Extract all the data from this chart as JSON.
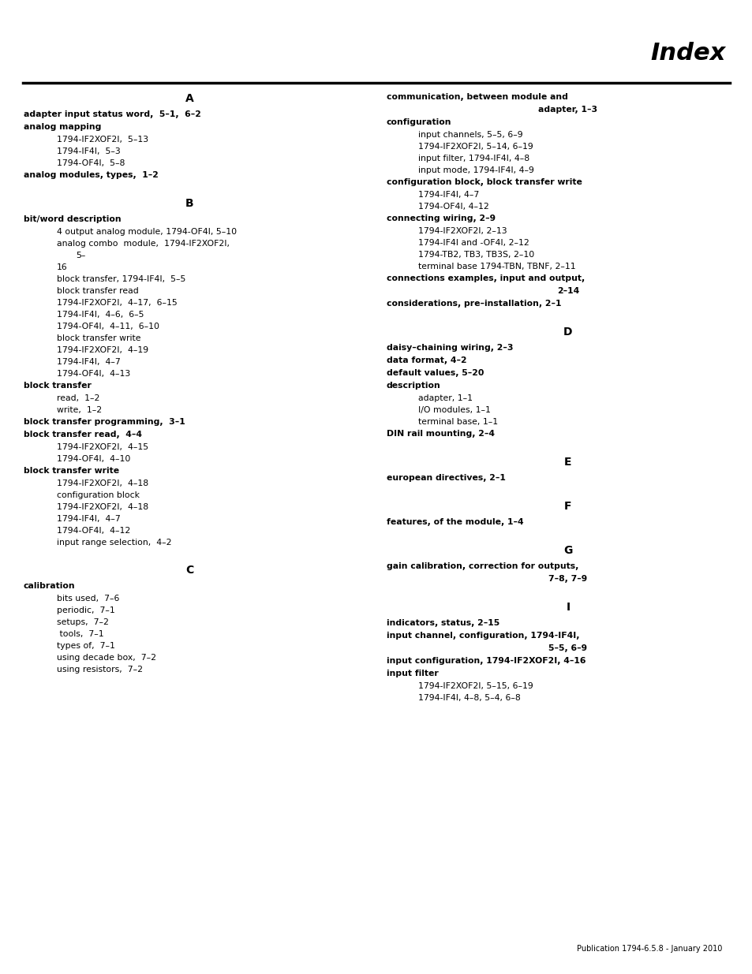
{
  "title": "Index",
  "bg_color": "#ffffff",
  "text_color": "#000000",
  "header_line_color": "#000000",
  "footer_text": "Publication 1794-6.5.8 - January 2010",
  "left_column": [
    {
      "type": "letter_header",
      "text": "A"
    },
    {
      "type": "bold_entry",
      "text": "adapter input status word,  5–1,  6–2"
    },
    {
      "type": "bold_entry",
      "text": "analog mapping"
    },
    {
      "type": "sub_entry",
      "text": "1794-IF2XOF2I,  5–13"
    },
    {
      "type": "sub_entry",
      "text": "1794-IF4I,  5–3"
    },
    {
      "type": "sub_entry",
      "text": "1794-OF4I,  5–8"
    },
    {
      "type": "bold_entry",
      "text": "analog modules, types,  1–2"
    },
    {
      "type": "spacer"
    },
    {
      "type": "letter_header",
      "text": "B"
    },
    {
      "type": "bold_entry",
      "text": "bit/word description"
    },
    {
      "type": "sub_entry",
      "text": "4 output analog module, 1794-OF4I, 5–10"
    },
    {
      "type": "sub_entry2",
      "text": "analog combo  module,  1794-IF2XOF2I,"
    },
    {
      "type": "sub_entry3",
      "text": "5–"
    },
    {
      "type": "sub_entry",
      "text": "16"
    },
    {
      "type": "sub_entry",
      "text": "block transfer, 1794-IF4I,  5–5"
    },
    {
      "type": "sub_entry",
      "text": "block transfer read"
    },
    {
      "type": "sub_entry",
      "text": "1794-IF2XOF2I,  4–17,  6–15"
    },
    {
      "type": "sub_entry",
      "text": "1794-IF4I,  4–6,  6–5"
    },
    {
      "type": "sub_entry",
      "text": "1794-OF4I,  4–11,  6–10"
    },
    {
      "type": "sub_entry",
      "text": "block transfer write"
    },
    {
      "type": "sub_entry",
      "text": "1794-IF2XOF2I,  4–19"
    },
    {
      "type": "sub_entry",
      "text": "1794-IF4I,  4–7"
    },
    {
      "type": "sub_entry",
      "text": "1794-OF4I,  4–13"
    },
    {
      "type": "bold_entry",
      "text": "block transfer"
    },
    {
      "type": "sub_entry",
      "text": "read,  1–2"
    },
    {
      "type": "sub_entry",
      "text": "write,  1–2"
    },
    {
      "type": "bold_entry",
      "text": "block transfer programming,  3–1"
    },
    {
      "type": "bold_entry",
      "text": "block transfer read,  4–4"
    },
    {
      "type": "sub_entry",
      "text": "1794-IF2XOF2I,  4–15"
    },
    {
      "type": "sub_entry",
      "text": "1794-OF4I,  4–10"
    },
    {
      "type": "bold_entry",
      "text": "block transfer write"
    },
    {
      "type": "sub_entry",
      "text": "1794-IF2XOF2I,  4–18"
    },
    {
      "type": "sub_entry",
      "text": "configuration block"
    },
    {
      "type": "sub_entry",
      "text": "1794-IF2XOF2I,  4–18"
    },
    {
      "type": "sub_entry",
      "text": "1794-IF4I,  4–7"
    },
    {
      "type": "sub_entry",
      "text": "1794-OF4I,  4–12"
    },
    {
      "type": "sub_entry",
      "text": "input range selection,  4–2"
    },
    {
      "type": "spacer"
    },
    {
      "type": "letter_header",
      "text": "C"
    },
    {
      "type": "bold_entry",
      "text": "calibration"
    },
    {
      "type": "sub_entry",
      "text": "bits used,  7–6"
    },
    {
      "type": "sub_entry",
      "text": "periodic,  7–1"
    },
    {
      "type": "sub_entry",
      "text": "setups,  7–2"
    },
    {
      "type": "sub_entry",
      "text": " tools,  7–1"
    },
    {
      "type": "sub_entry",
      "text": "types of,  7–1"
    },
    {
      "type": "sub_entry",
      "text": "using decade box,  7–2"
    },
    {
      "type": "sub_entry",
      "text": "using resistors,  7–2"
    }
  ],
  "right_column": [
    {
      "type": "bold_entry2",
      "text": "communication, between module and"
    },
    {
      "type": "bold_center",
      "text": "adapter, 1–3"
    },
    {
      "type": "bold_entry",
      "text": "configuration"
    },
    {
      "type": "sub_entry",
      "text": "input channels, 5–5, 6–9"
    },
    {
      "type": "sub_entry",
      "text": "1794-IF2XOF2I, 5–14, 6–19"
    },
    {
      "type": "sub_entry",
      "text": "input filter, 1794-IF4I, 4–8"
    },
    {
      "type": "sub_entry",
      "text": "input mode, 1794-IF4I, 4–9"
    },
    {
      "type": "bold_entry",
      "text": "configuration block, block transfer write"
    },
    {
      "type": "sub_entry",
      "text": "1794-IF4I, 4–7"
    },
    {
      "type": "sub_entry",
      "text": "1794-OF4I, 4–12"
    },
    {
      "type": "bold_entry",
      "text": "connecting wiring, 2–9"
    },
    {
      "type": "sub_entry",
      "text": "1794-IF2XOF2I, 2–13"
    },
    {
      "type": "sub_entry",
      "text": "1794-IF4I and -OF4I, 2–12"
    },
    {
      "type": "sub_entry",
      "text": "1794-TB2, TB3, TB3S, 2–10"
    },
    {
      "type": "sub_entry",
      "text": "terminal base 1794-TBN, TBNF, 2–11"
    },
    {
      "type": "bold_entry2",
      "text": "connections examples, input and output,"
    },
    {
      "type": "bold_center",
      "text": "2–14"
    },
    {
      "type": "bold_entry",
      "text": "considerations, pre–installation, 2–1"
    },
    {
      "type": "spacer"
    },
    {
      "type": "letter_header",
      "text": "D"
    },
    {
      "type": "bold_entry",
      "text": "daisy–chaining wiring, 2–3"
    },
    {
      "type": "bold_entry",
      "text": "data format, 4–2"
    },
    {
      "type": "bold_entry",
      "text": "default values, 5–20"
    },
    {
      "type": "bold_entry",
      "text": "description"
    },
    {
      "type": "sub_entry",
      "text": "adapter, 1–1"
    },
    {
      "type": "sub_entry",
      "text": "I/O modules, 1–1"
    },
    {
      "type": "sub_entry",
      "text": "terminal base, 1–1"
    },
    {
      "type": "bold_entry",
      "text": "DIN rail mounting, 2–4"
    },
    {
      "type": "spacer"
    },
    {
      "type": "letter_header",
      "text": "E"
    },
    {
      "type": "bold_entry",
      "text": "european directives, 2–1"
    },
    {
      "type": "spacer"
    },
    {
      "type": "letter_header",
      "text": "F"
    },
    {
      "type": "bold_entry",
      "text": "features, of the module, 1–4"
    },
    {
      "type": "spacer"
    },
    {
      "type": "letter_header",
      "text": "G"
    },
    {
      "type": "bold_entry2",
      "text": "gain calibration, correction for outputs,"
    },
    {
      "type": "bold_center",
      "text": "7–8, 7–9"
    },
    {
      "type": "spacer"
    },
    {
      "type": "letter_header",
      "text": "I"
    },
    {
      "type": "bold_entry",
      "text": "indicators, status, 2–15"
    },
    {
      "type": "bold_entry2",
      "text": "input channel, configuration, 1794-IF4I,"
    },
    {
      "type": "bold_center",
      "text": "5–5, 6–9"
    },
    {
      "type": "bold_entry2",
      "text": "input configuration, 1794-IF2XOF2I, 4–16"
    },
    {
      "type": "bold_entry",
      "text": "input filter"
    },
    {
      "type": "sub_entry",
      "text": "1794-IF2XOF2I, 5–15, 6–19"
    },
    {
      "type": "sub_entry",
      "text": "1794-IF4I, 4–8, 5–4, 6–8"
    }
  ]
}
